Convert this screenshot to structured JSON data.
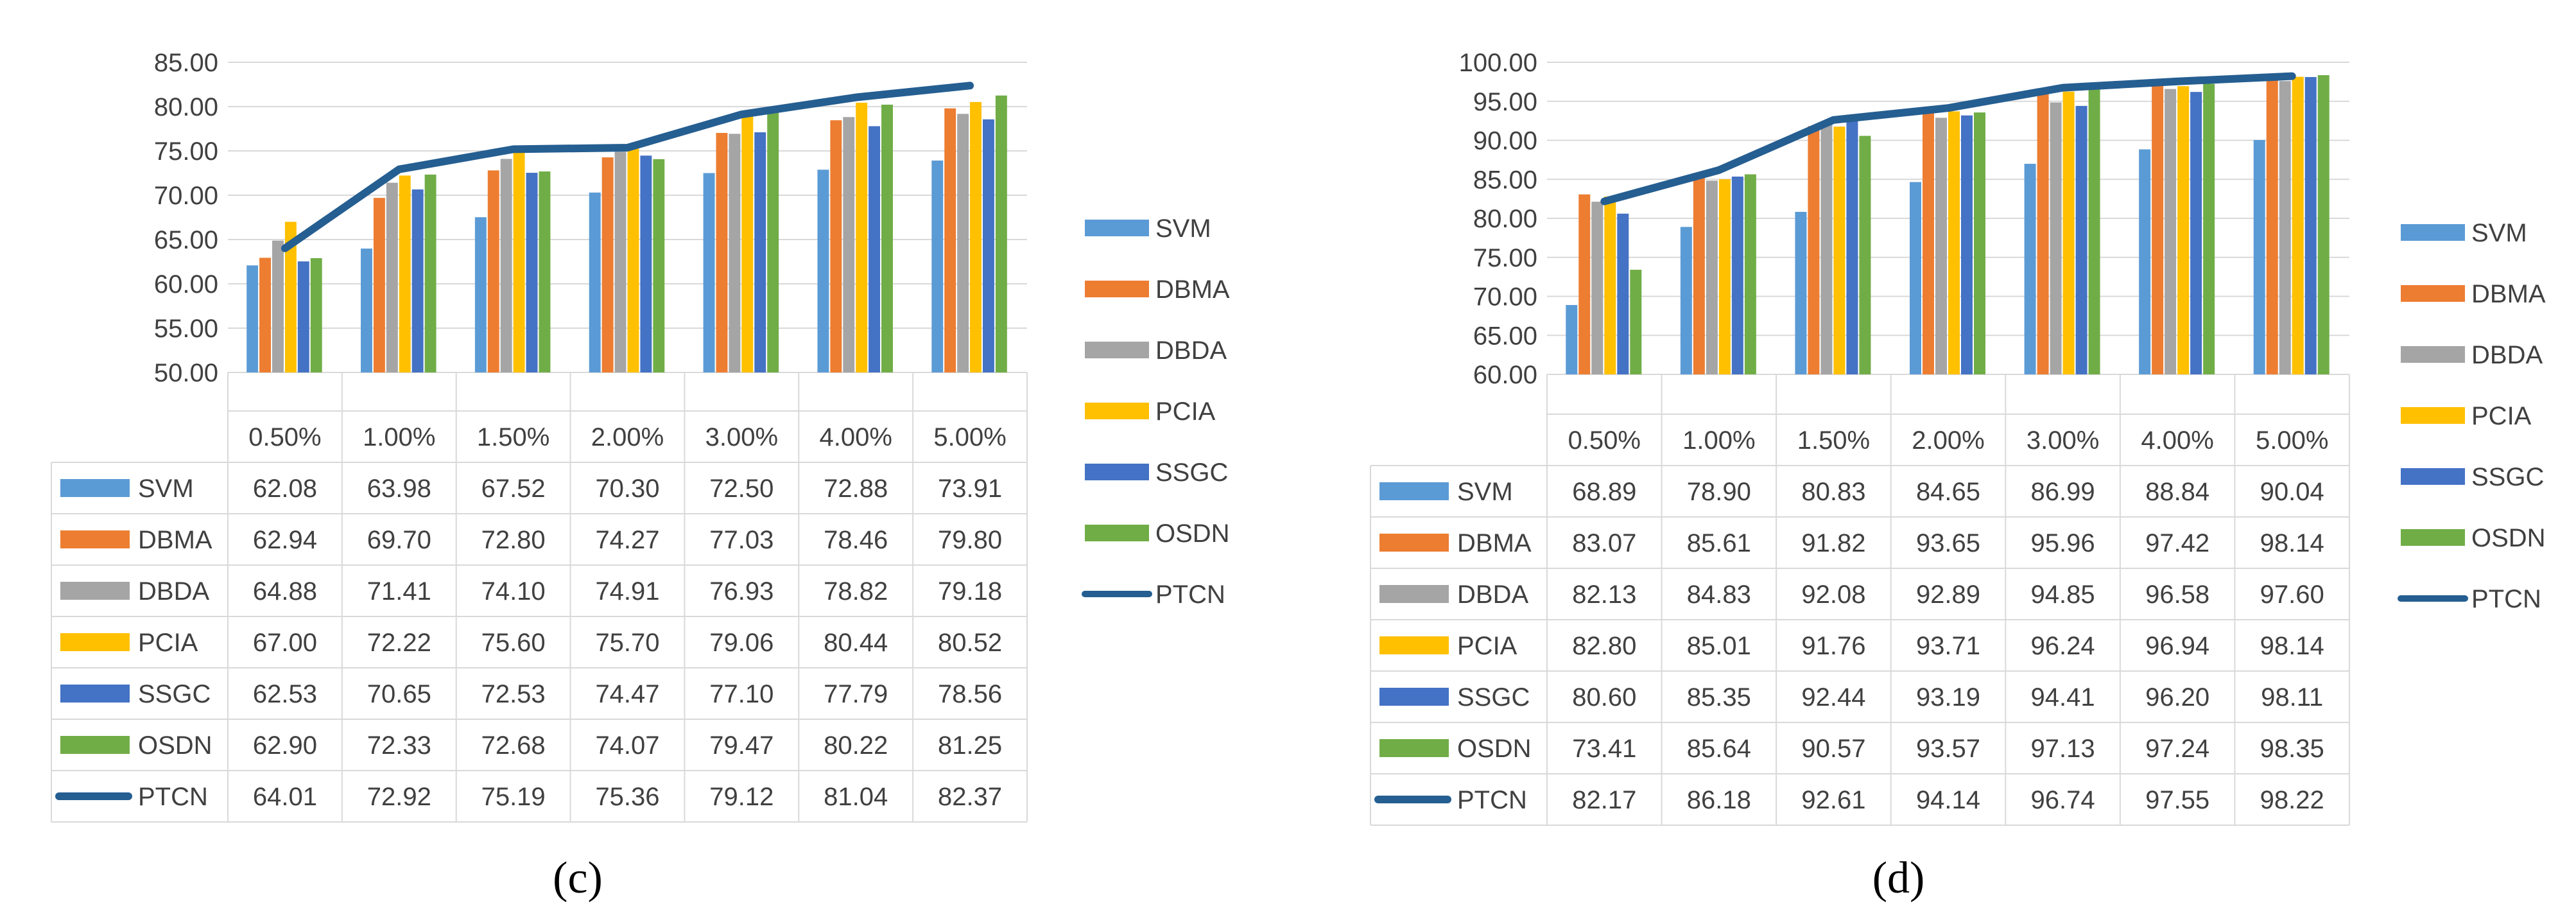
{
  "chart_data": [
    {
      "type": "bar",
      "caption": "(c)",
      "categories": [
        "0.50%",
        "1.00%",
        "1.50%",
        "2.00%",
        "3.00%",
        "4.00%",
        "5.00%"
      ],
      "ylim": [
        50,
        85
      ],
      "yticks": [
        "50.00",
        "55.00",
        "60.00",
        "65.00",
        "70.00",
        "75.00",
        "80.00",
        "85.00"
      ],
      "series": [
        {
          "name": "SVM",
          "type": "bar",
          "color": "#5b9bd5",
          "values": [
            62.08,
            63.98,
            67.52,
            70.3,
            72.5,
            72.88,
            73.91
          ],
          "labels": [
            "62.08",
            "63.98",
            "67.52",
            "70.30",
            "72.50",
            "72.88",
            "73.91"
          ]
        },
        {
          "name": "DBMA",
          "type": "bar",
          "color": "#ed7d31",
          "values": [
            62.94,
            69.7,
            72.8,
            74.27,
            77.03,
            78.46,
            79.8
          ],
          "labels": [
            "62.94",
            "69.70",
            "72.80",
            "74.27",
            "77.03",
            "78.46",
            "79.80"
          ]
        },
        {
          "name": "DBDA",
          "type": "bar",
          "color": "#a5a5a5",
          "values": [
            64.88,
            71.41,
            74.1,
            74.91,
            76.93,
            78.82,
            79.18
          ],
          "labels": [
            "64.88",
            "71.41",
            "74.10",
            "74.91",
            "76.93",
            "78.82",
            "79.18"
          ]
        },
        {
          "name": "PCIA",
          "type": "bar",
          "color": "#ffc000",
          "values": [
            67.0,
            72.22,
            75.6,
            75.7,
            79.06,
            80.44,
            80.52
          ],
          "labels": [
            "67.00",
            "72.22",
            "75.60",
            "75.70",
            "79.06",
            "80.44",
            "80.52"
          ]
        },
        {
          "name": "SSGC",
          "type": "bar",
          "color": "#4472c4",
          "values": [
            62.53,
            70.65,
            72.53,
            74.47,
            77.1,
            77.79,
            78.56
          ],
          "labels": [
            "62.53",
            "70.65",
            "72.53",
            "74.47",
            "77.10",
            "77.79",
            "78.56"
          ]
        },
        {
          "name": "OSDN",
          "type": "bar",
          "color": "#70ad47",
          "values": [
            62.9,
            72.33,
            72.68,
            74.07,
            79.47,
            80.22,
            81.25
          ],
          "labels": [
            "62.90",
            "72.33",
            "72.68",
            "74.07",
            "79.47",
            "80.22",
            "81.25"
          ]
        },
        {
          "name": "PTCN",
          "type": "line",
          "color": "#255e91",
          "values": [
            64.01,
            72.92,
            75.19,
            75.36,
            79.12,
            81.04,
            82.37
          ],
          "labels": [
            "64.01",
            "72.92",
            "75.19",
            "75.36",
            "79.12",
            "81.04",
            "82.37"
          ]
        }
      ]
    },
    {
      "type": "bar",
      "caption": "(d)",
      "categories": [
        "0.50%",
        "1.00%",
        "1.50%",
        "2.00%",
        "3.00%",
        "4.00%",
        "5.00%"
      ],
      "ylim": [
        60,
        100
      ],
      "yticks": [
        "60.00",
        "65.00",
        "70.00",
        "75.00",
        "80.00",
        "85.00",
        "90.00",
        "95.00",
        "100.00"
      ],
      "series": [
        {
          "name": "SVM",
          "type": "bar",
          "color": "#5b9bd5",
          "values": [
            68.89,
            78.9,
            80.83,
            84.65,
            86.99,
            88.84,
            90.04
          ],
          "labels": [
            "68.89",
            "78.90",
            "80.83",
            "84.65",
            "86.99",
            "88.84",
            "90.04"
          ]
        },
        {
          "name": "DBMA",
          "type": "bar",
          "color": "#ed7d31",
          "values": [
            83.07,
            85.61,
            91.82,
            93.65,
            95.96,
            97.42,
            98.14
          ],
          "labels": [
            "83.07",
            "85.61",
            "91.82",
            "93.65",
            "95.96",
            "97.42",
            "98.14"
          ]
        },
        {
          "name": "DBDA",
          "type": "bar",
          "color": "#a5a5a5",
          "values": [
            82.13,
            84.83,
            92.08,
            92.89,
            94.85,
            96.58,
            97.6
          ],
          "labels": [
            "82.13",
            "84.83",
            "92.08",
            "92.89",
            "94.85",
            "96.58",
            "97.60"
          ]
        },
        {
          "name": "PCIA",
          "type": "bar",
          "color": "#ffc000",
          "values": [
            82.8,
            85.01,
            91.76,
            93.71,
            96.24,
            96.94,
            98.14
          ],
          "labels": [
            "82.80",
            "85.01",
            "91.76",
            "93.71",
            "96.24",
            "96.94",
            "98.14"
          ]
        },
        {
          "name": "SSGC",
          "type": "bar",
          "color": "#4472c4",
          "values": [
            80.6,
            85.35,
            92.44,
            93.19,
            94.41,
            96.2,
            98.11
          ],
          "labels": [
            "80.60",
            "85.35",
            "92.44",
            "93.19",
            "94.41",
            "96.20",
            "98.11"
          ]
        },
        {
          "name": "OSDN",
          "type": "bar",
          "color": "#70ad47",
          "values": [
            73.41,
            85.64,
            90.57,
            93.57,
            97.13,
            97.24,
            98.35
          ],
          "labels": [
            "73.41",
            "85.64",
            "90.57",
            "93.57",
            "97.13",
            "97.24",
            "98.35"
          ]
        },
        {
          "name": "PTCN",
          "type": "line",
          "color": "#255e91",
          "values": [
            82.17,
            86.18,
            92.61,
            94.14,
            96.74,
            97.55,
            98.22
          ],
          "labels": [
            "82.17",
            "86.18",
            "92.61",
            "94.14",
            "96.74",
            "97.55",
            "98.22"
          ]
        }
      ]
    }
  ]
}
